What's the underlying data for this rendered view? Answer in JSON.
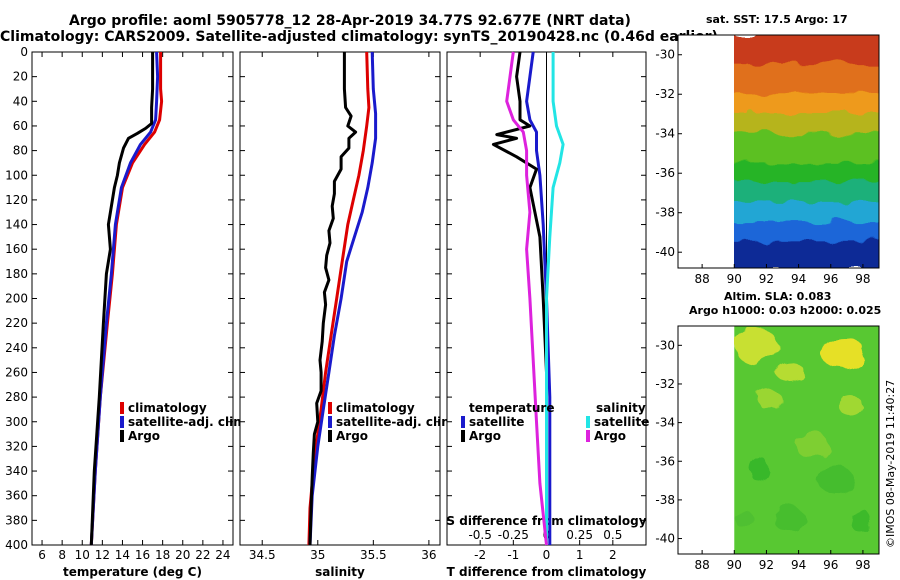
{
  "header": {
    "line1": "Argo profile: aoml 5905778_12 28-Apr-2019 34.77S 92.677E (NRT data)",
    "line2": "Climatology: CARS2009. Satellite-adjusted climatology: synTS_20190428.nc (0.46d earlier)"
  },
  "colors": {
    "argo": "#000000",
    "climatology": "#dd0000",
    "satellite": "#1a1acc",
    "sat_salinity": "#22e5e5",
    "argo_salinity": "#dd22dd"
  },
  "chart_data": [
    {
      "type": "line",
      "id": "temperature",
      "xlabel": "temperature (deg C)",
      "ylabel": "",
      "xlim": [
        5,
        25
      ],
      "ylim": [
        400,
        0
      ],
      "xticks": [
        "6",
        "8",
        "10",
        "12",
        "14",
        "16",
        "18",
        "20",
        "22",
        "24"
      ],
      "xtick_values": [
        6,
        8,
        10,
        12,
        14,
        16,
        18,
        20,
        22,
        24
      ],
      "yticks": [
        "0",
        "20",
        "40",
        "60",
        "80",
        "100",
        "120",
        "140",
        "160",
        "180",
        "200",
        "220",
        "240",
        "260",
        "280",
        "300",
        "320",
        "340",
        "360",
        "380",
        "400"
      ],
      "ytick_values": [
        0,
        20,
        40,
        60,
        80,
        100,
        120,
        140,
        160,
        180,
        200,
        220,
        240,
        260,
        280,
        300,
        320,
        340,
        360,
        380,
        400
      ],
      "legend": [
        "climatology",
        "satellite-adj. clim.",
        "Argo"
      ],
      "series": [
        {
          "name": "climatology",
          "color": "#dd0000",
          "points": [
            [
              17.8,
              0
            ],
            [
              17.8,
              30
            ],
            [
              17.9,
              40
            ],
            [
              17.7,
              55
            ],
            [
              17.2,
              65
            ],
            [
              16.2,
              75
            ],
            [
              15.0,
              90
            ],
            [
              14.0,
              110
            ],
            [
              13.4,
              140
            ],
            [
              13.0,
              180
            ],
            [
              12.5,
              220
            ],
            [
              11.8,
              280
            ],
            [
              11.3,
              340
            ],
            [
              10.9,
              400
            ]
          ]
        },
        {
          "name": "satellite-adj. clim.",
          "color": "#1a1acc",
          "points": [
            [
              17.4,
              0
            ],
            [
              17.5,
              20
            ],
            [
              17.4,
              40
            ],
            [
              17.3,
              55
            ],
            [
              16.8,
              65
            ],
            [
              15.8,
              75
            ],
            [
              14.8,
              90
            ],
            [
              13.9,
              110
            ],
            [
              13.3,
              140
            ],
            [
              12.9,
              180
            ],
            [
              12.4,
              220
            ],
            [
              11.8,
              280
            ],
            [
              11.3,
              340
            ],
            [
              10.9,
              400
            ]
          ]
        },
        {
          "name": "Argo",
          "color": "#000000",
          "points": [
            [
              17.0,
              0
            ],
            [
              17.0,
              30
            ],
            [
              16.9,
              45
            ],
            [
              16.9,
              58
            ],
            [
              16.3,
              62
            ],
            [
              15.5,
              66
            ],
            [
              14.6,
              70
            ],
            [
              14.1,
              78
            ],
            [
              13.7,
              90
            ],
            [
              13.5,
              100
            ],
            [
              13.2,
              110
            ],
            [
              12.9,
              125
            ],
            [
              12.6,
              140
            ],
            [
              12.8,
              160
            ],
            [
              12.4,
              180
            ],
            [
              12.1,
              220
            ],
            [
              11.7,
              280
            ],
            [
              11.2,
              340
            ],
            [
              10.9,
              400
            ]
          ]
        }
      ]
    },
    {
      "type": "line",
      "id": "salinity",
      "xlabel": "salinity",
      "xlim": [
        34.3,
        36.1
      ],
      "ylim": [
        400,
        0
      ],
      "xticks": [
        "34.5",
        "35",
        "35.5",
        "36"
      ],
      "xtick_values": [
        34.5,
        35,
        35.5,
        36
      ],
      "legend": [
        "climatology",
        "satellite-adj. clim.",
        "Argo"
      ],
      "series": [
        {
          "name": "climatology",
          "color": "#dd0000",
          "points": [
            [
              35.44,
              0
            ],
            [
              35.45,
              30
            ],
            [
              35.46,
              45
            ],
            [
              35.44,
              60
            ],
            [
              35.41,
              80
            ],
            [
              35.37,
              100
            ],
            [
              35.32,
              120
            ],
            [
              35.27,
              140
            ],
            [
              35.22,
              170
            ],
            [
              35.17,
              200
            ],
            [
              35.12,
              230
            ],
            [
              35.07,
              260
            ],
            [
              35.03,
              290
            ],
            [
              34.97,
              330
            ],
            [
              34.93,
              370
            ],
            [
              34.92,
              400
            ]
          ]
        },
        {
          "name": "satellite-adj. clim.",
          "color": "#1a1acc",
          "points": [
            [
              35.49,
              0
            ],
            [
              35.5,
              30
            ],
            [
              35.52,
              50
            ],
            [
              35.52,
              70
            ],
            [
              35.49,
              90
            ],
            [
              35.45,
              110
            ],
            [
              35.4,
              130
            ],
            [
              35.33,
              150
            ],
            [
              35.26,
              170
            ],
            [
              35.21,
              200
            ],
            [
              35.15,
              230
            ],
            [
              35.1,
              260
            ],
            [
              35.05,
              290
            ],
            [
              35.0,
              320
            ],
            [
              34.95,
              360
            ],
            [
              34.93,
              400
            ]
          ]
        },
        {
          "name": "Argo",
          "color": "#000000",
          "points": [
            [
              35.24,
              0
            ],
            [
              35.24,
              30
            ],
            [
              35.25,
              45
            ],
            [
              35.3,
              52
            ],
            [
              35.27,
              60
            ],
            [
              35.34,
              65
            ],
            [
              35.28,
              70
            ],
            [
              35.28,
              78
            ],
            [
              35.21,
              85
            ],
            [
              35.21,
              95
            ],
            [
              35.15,
              105
            ],
            [
              35.15,
              115
            ],
            [
              35.13,
              125
            ],
            [
              35.14,
              135
            ],
            [
              35.1,
              145
            ],
            [
              35.11,
              155
            ],
            [
              35.08,
              165
            ],
            [
              35.07,
              175
            ],
            [
              35.1,
              185
            ],
            [
              35.06,
              195
            ],
            [
              35.07,
              205
            ],
            [
              35.05,
              220
            ],
            [
              35.04,
              235
            ],
            [
              35.02,
              250
            ],
            [
              35.03,
              260
            ],
            [
              35.03,
              275
            ],
            [
              34.99,
              285
            ],
            [
              35.0,
              300
            ],
            [
              34.97,
              310
            ],
            [
              34.96,
              325
            ],
            [
              34.95,
              345
            ],
            [
              34.94,
              370
            ],
            [
              34.93,
              400
            ]
          ]
        }
      ]
    },
    {
      "type": "line",
      "id": "difference",
      "xlabel": "T difference from climatology",
      "top_label": "S difference from climatology",
      "xlim": [
        -3,
        3
      ],
      "ylim": [
        400,
        0
      ],
      "xticks": [
        "-2",
        "-1",
        "0",
        "1",
        "2"
      ],
      "xtick_values": [
        -2,
        -1,
        0,
        1,
        2
      ],
      "sxticks": [
        "-0.5",
        "-0.25",
        "0",
        "0.25",
        "0.5"
      ],
      "sxtick_values": [
        -2,
        -1,
        0,
        1,
        2
      ],
      "legend_temperature_title": "temperature",
      "legend_salinity_title": "salinity",
      "legend": [
        "satellite",
        "Argo",
        "satellite",
        "Argo"
      ],
      "series": [
        {
          "name": "temperature satellite",
          "color": "#1a1acc",
          "points": [
            [
              -0.4,
              0
            ],
            [
              -0.5,
              20
            ],
            [
              -0.6,
              40
            ],
            [
              -0.5,
              55
            ],
            [
              -0.3,
              65
            ],
            [
              -0.3,
              80
            ],
            [
              -0.2,
              100
            ],
            [
              -0.1,
              140
            ],
            [
              0.0,
              200
            ],
            [
              0.1,
              280
            ],
            [
              0.1,
              400
            ]
          ]
        },
        {
          "name": "temperature Argo",
          "color": "#000000",
          "points": [
            [
              -0.8,
              0
            ],
            [
              -0.9,
              20
            ],
            [
              -0.8,
              40
            ],
            [
              -0.8,
              55
            ],
            [
              -0.5,
              60
            ],
            [
              -1.5,
              67
            ],
            [
              -0.9,
              70
            ],
            [
              -1.6,
              75
            ],
            [
              -0.9,
              85
            ],
            [
              -0.3,
              95
            ],
            [
              -0.5,
              110
            ],
            [
              -0.2,
              150
            ],
            [
              -0.1,
              200
            ],
            [
              0.0,
              260
            ],
            [
              0.0,
              320
            ],
            [
              0.0,
              400
            ]
          ]
        },
        {
          "name": "salinity satellite",
          "color": "#22e5e5",
          "points": [
            [
              0.2,
              0
            ],
            [
              0.2,
              20
            ],
            [
              0.2,
              40
            ],
            [
              0.3,
              60
            ],
            [
              0.5,
              75
            ],
            [
              0.4,
              90
            ],
            [
              0.2,
              110
            ],
            [
              0.1,
              150
            ],
            [
              0.0,
              200
            ],
            [
              0.0,
              300
            ],
            [
              0.0,
              400
            ]
          ]
        },
        {
          "name": "salinity Argo",
          "color": "#dd22dd",
          "points": [
            [
              -1.0,
              0
            ],
            [
              -1.1,
              20
            ],
            [
              -1.2,
              40
            ],
            [
              -1.0,
              55
            ],
            [
              -0.7,
              65
            ],
            [
              -0.6,
              80
            ],
            [
              -0.6,
              100
            ],
            [
              -0.5,
              130
            ],
            [
              -0.6,
              160
            ],
            [
              -0.5,
              200
            ],
            [
              -0.4,
              250
            ],
            [
              -0.3,
              300
            ],
            [
              -0.2,
              350
            ],
            [
              0.0,
              400
            ]
          ]
        }
      ]
    },
    {
      "type": "heatmap",
      "id": "sst",
      "title": "sat. SST: 17.5 Argo: 17",
      "xticks": [
        "88",
        "90",
        "92",
        "94",
        "96",
        "98"
      ],
      "xtick_values": [
        88,
        90,
        92,
        94,
        96,
        98
      ],
      "yticks": [
        "-30",
        "-32",
        "-34",
        "-36",
        "-38",
        "-40"
      ],
      "ytick_values": [
        -30,
        -32,
        -34,
        -36,
        -38,
        -40
      ],
      "xlim": [
        86.5,
        99
      ],
      "ylim": [
        -29,
        -40.8
      ],
      "data_lon_range": [
        90,
        99
      ],
      "bands": [
        {
          "lat": -29.0,
          "color": "#c83a1a"
        },
        {
          "lat": -30.5,
          "color": "#e0701a"
        },
        {
          "lat": -32.0,
          "color": "#ee9a1a"
        },
        {
          "lat": -33.0,
          "color": "#b6b41a"
        },
        {
          "lat": -34.0,
          "color": "#5cc022"
        },
        {
          "lat": -35.5,
          "color": "#26b426"
        },
        {
          "lat": -36.5,
          "color": "#1cb07a"
        },
        {
          "lat": -37.5,
          "color": "#22a6d4"
        },
        {
          "lat": -38.5,
          "color": "#1c66d8"
        },
        {
          "lat": -39.5,
          "color": "#0c2a96"
        },
        {
          "lat": -40.8,
          "color": "#0c2a96"
        }
      ]
    },
    {
      "type": "heatmap",
      "id": "sla",
      "title": "Altim. SLA: 0.083",
      "subtitle": "Argo h1000: 0.03 h2000: 0.025",
      "xticks": [
        "88",
        "90",
        "92",
        "94",
        "96",
        "98"
      ],
      "xtick_values": [
        88,
        90,
        92,
        94,
        96,
        98
      ],
      "yticks": [
        "-30",
        "-32",
        "-34",
        "-36",
        "-38",
        "-40"
      ],
      "ytick_values": [
        -30,
        -32,
        -34,
        -36,
        -38,
        -40
      ],
      "xlim": [
        86.5,
        99
      ],
      "ylim": [
        -29,
        -40.8
      ],
      "data_lon_range": [
        90,
        99
      ],
      "base_color": "#58c832"
    }
  ],
  "footer": {
    "stamp": "©IMOS 08-May-2019 11:40:27"
  }
}
